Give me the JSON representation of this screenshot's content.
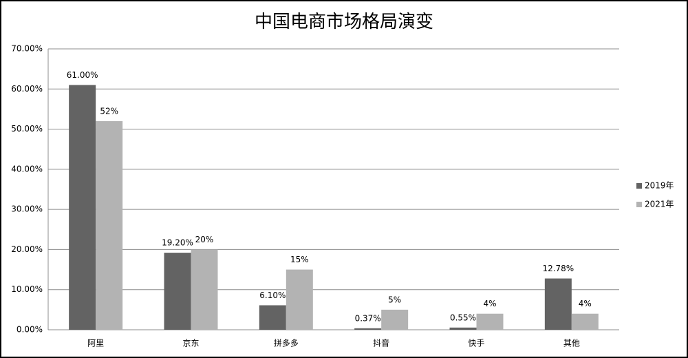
{
  "chart_data": {
    "type": "bar",
    "title": "中国电商市场格局演变",
    "categories": [
      "阿里",
      "京东",
      "拼多多",
      "抖音",
      "快手",
      "其他"
    ],
    "series": [
      {
        "name": "2019年",
        "color": "#636363",
        "values": [
          61,
          19.2,
          6.1,
          0.37,
          0.55,
          12.78
        ],
        "value_labels": [
          "61.00%",
          "19.20%",
          "6.10%",
          "0.37%",
          "0.55%",
          "12.78%"
        ]
      },
      {
        "name": "2021年",
        "color": "#b3b3b3",
        "values": [
          52,
          20,
          15,
          5,
          4,
          4
        ],
        "value_labels": [
          "52%",
          "20%",
          "15%",
          "5%",
          "4%",
          "4%"
        ]
      }
    ],
    "ylim": [
      0,
      70
    ],
    "yticks": [
      {
        "value": 0,
        "label": "0.00%"
      },
      {
        "value": 10,
        "label": "10.00%"
      },
      {
        "value": 20,
        "label": "20.00%"
      },
      {
        "value": 30,
        "label": "30.00%"
      },
      {
        "value": 40,
        "label": "40.00%"
      },
      {
        "value": 50,
        "label": "50.00%"
      },
      {
        "value": 60,
        "label": "60.00%"
      },
      {
        "value": 70,
        "label": "70.00%"
      }
    ],
    "grid": true,
    "legend": "right"
  }
}
